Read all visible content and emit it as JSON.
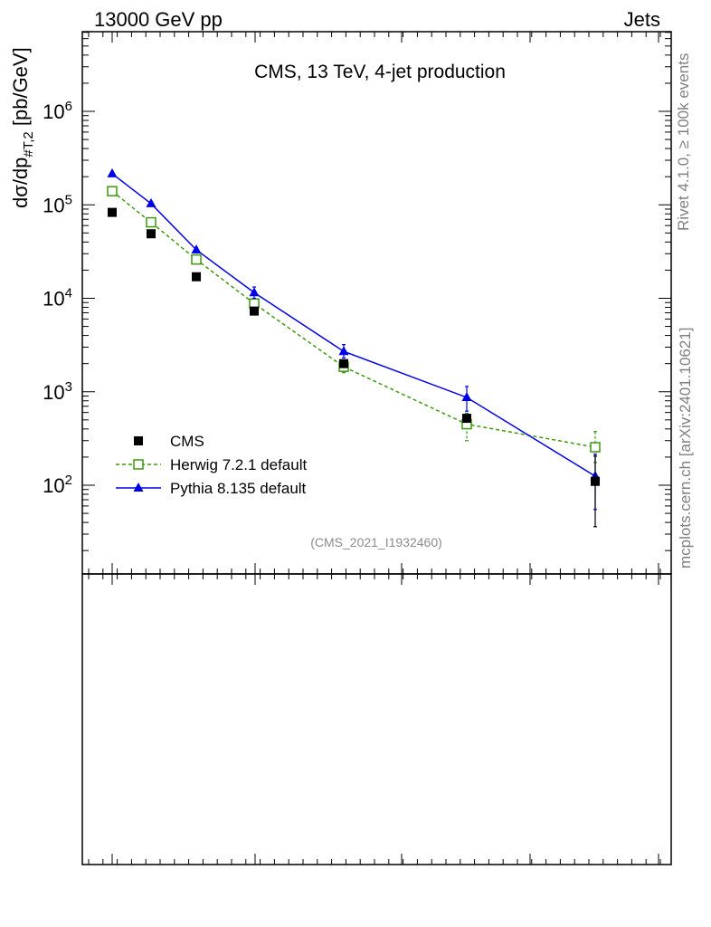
{
  "header": {
    "left": "13000 GeV pp",
    "right": "Jets"
  },
  "side_text": {
    "version": "Rivet 4.1.0, ≥ 100k events",
    "source": "mcplots.cern.ch [arXiv:2401.10621]"
  },
  "chart_data": {
    "type": "scatter",
    "title": "CMS, 13 TeV, 4-jet production",
    "analysis_id": "(CMS_2021_I1932460)",
    "ylabel_parts": {
      "main": "dσ/dp",
      "subscript": "#T,2",
      "unit": " [pb/GeV]"
    },
    "y_scale": "log",
    "ylim": [
      10,
      10000000
    ],
    "y_ticks": [
      {
        "value": 100,
        "label": "10",
        "exp": "2"
      },
      {
        "value": 1000,
        "label": "10",
        "exp": "3"
      },
      {
        "value": 10000,
        "label": "10",
        "exp": "4"
      },
      {
        "value": 100000,
        "label": "10",
        "exp": "5"
      },
      {
        "value": 1000000,
        "label": "10",
        "exp": "6"
      }
    ],
    "x_ticks_labeled": false,
    "series": [
      {
        "name": "CMS",
        "style": "marker-only",
        "marker": "filled-square",
        "color": "#000000",
        "points": [
          {
            "x": 1,
            "y": 83000
          },
          {
            "x": 2,
            "y": 49000
          },
          {
            "x": 3,
            "y": 17000
          },
          {
            "x": 4,
            "y": 7300
          },
          {
            "x": 5,
            "y": 2000
          },
          {
            "x": 6,
            "y": 520
          },
          {
            "x": 7,
            "y": 110,
            "err_lo": 74,
            "err_hi": 95
          }
        ]
      },
      {
        "name": "Herwig 7.2.1 default",
        "style": "dashed",
        "marker": "open-square",
        "color": "#3a9a0c",
        "points": [
          {
            "x": 1,
            "y": 140000
          },
          {
            "x": 2,
            "y": 65000
          },
          {
            "x": 3,
            "y": 26000
          },
          {
            "x": 4,
            "y": 8800
          },
          {
            "x": 5,
            "y": 1850,
            "err_lo": 250,
            "err_hi": 250
          },
          {
            "x": 6,
            "y": 450,
            "err_lo": 150,
            "err_hi": 140
          },
          {
            "x": 7,
            "y": 255,
            "err_lo": 80,
            "err_hi": 120
          }
        ]
      },
      {
        "name": "Pythia 8.135 default",
        "style": "solid",
        "marker": "filled-triangle",
        "color": "#0000e6",
        "points": [
          {
            "x": 1,
            "y": 215000
          },
          {
            "x": 2,
            "y": 103000
          },
          {
            "x": 3,
            "y": 33000
          },
          {
            "x": 4,
            "y": 11500,
            "err_lo": 1500,
            "err_hi": 1700
          },
          {
            "x": 5,
            "y": 2700,
            "err_lo": 400,
            "err_hi": 500
          },
          {
            "x": 6,
            "y": 870,
            "err_lo": 250,
            "err_hi": 270
          },
          {
            "x": 7,
            "y": 125,
            "err_lo": 70,
            "err_hi": 90
          }
        ]
      }
    ],
    "legend_position": "lower-left"
  }
}
